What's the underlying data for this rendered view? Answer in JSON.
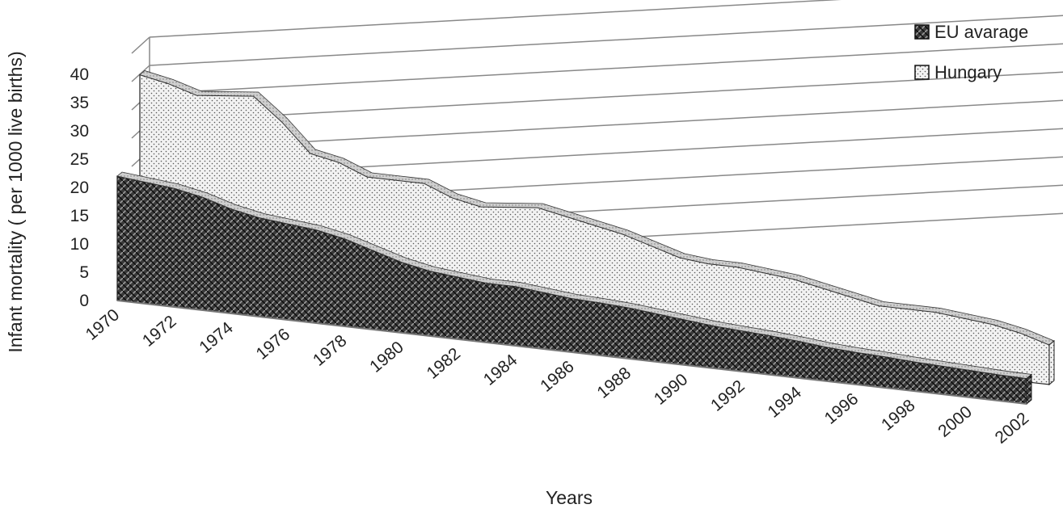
{
  "chart_data": {
    "type": "area",
    "style": "3d-area",
    "xlabel": "Years",
    "ylabel": "Infant mortality ( per 1000 live births)",
    "ylim": [
      0,
      40
    ],
    "yticks": [
      0,
      5,
      10,
      15,
      20,
      25,
      30,
      35,
      40
    ],
    "grid": true,
    "legend_position": "top-right",
    "x": [
      1970,
      1971,
      1972,
      1973,
      1974,
      1975,
      1976,
      1977,
      1978,
      1979,
      1980,
      1981,
      1982,
      1983,
      1984,
      1985,
      1986,
      1987,
      1988,
      1989,
      1990,
      1991,
      1992,
      1993,
      1994,
      1995,
      1996,
      1997,
      1998,
      1999,
      2000,
      2001,
      2002
    ],
    "xtick_labels": [
      "1970",
      "1972",
      "1974",
      "1976",
      "1978",
      "1980",
      "1982",
      "1984",
      "1986",
      "1988",
      "1990",
      "1992",
      "1994",
      "1996",
      "1998",
      "2000",
      "2002"
    ],
    "series": [
      {
        "name": "EU avarage",
        "pattern": "crosshatch-dark",
        "values": [
          22.0,
          21.5,
          21.0,
          20.0,
          18.5,
          17.5,
          17.0,
          16.5,
          15.5,
          14.0,
          12.5,
          11.5,
          11.0,
          10.5,
          10.5,
          10.0,
          9.5,
          9.3,
          9.0,
          8.5,
          8.0,
          7.5,
          7.2,
          6.9,
          6.5,
          6.0,
          5.7,
          5.5,
          5.2,
          5.0,
          4.8,
          4.6,
          4.5
        ]
      },
      {
        "name": "Hungary",
        "pattern": "dots-light",
        "values": [
          36.5,
          35.5,
          34.0,
          34.5,
          35.0,
          31.0,
          26.0,
          25.0,
          23.0,
          23.0,
          23.0,
          21.0,
          20.0,
          20.5,
          21.0,
          20.0,
          19.0,
          18.0,
          16.5,
          15.0,
          14.5,
          14.5,
          14.0,
          13.5,
          12.5,
          11.5,
          10.5,
          10.5,
          10.5,
          10.0,
          9.5,
          8.5,
          7.0
        ]
      }
    ]
  }
}
